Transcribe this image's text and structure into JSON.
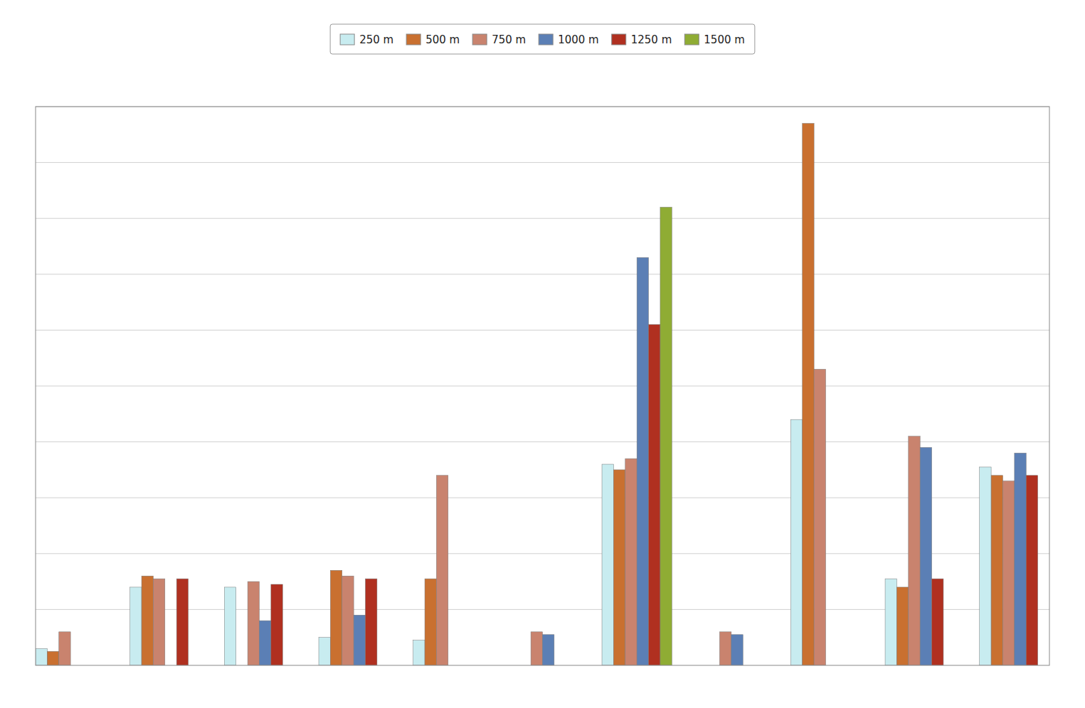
{
  "chart_data": {
    "type": "bar",
    "categories": [
      null,
      null,
      null,
      null,
      null,
      null,
      null,
      null,
      null,
      null,
      null
    ],
    "series": [
      {
        "name": "250 m",
        "color": "#c8ecf0",
        "values": [
          0.3,
          1.4,
          1.4,
          0.5,
          0.45,
          0.0,
          3.6,
          0.0,
          4.4,
          1.55,
          3.55
        ]
      },
      {
        "name": "500 m",
        "color": "#c97030",
        "values": [
          0.25,
          1.6,
          0.0,
          1.7,
          1.55,
          0.0,
          3.5,
          0.0,
          9.7,
          1.4,
          3.4
        ]
      },
      {
        "name": "750 m",
        "color": "#c9836e",
        "values": [
          0.6,
          1.55,
          1.5,
          1.6,
          3.4,
          0.6,
          3.7,
          0.6,
          5.3,
          4.1,
          3.3
        ]
      },
      {
        "name": "1000 m",
        "color": "#5b7fb5",
        "values": [
          0.0,
          0.0,
          0.8,
          0.9,
          0.0,
          0.55,
          7.3,
          0.55,
          0.0,
          3.9,
          3.8
        ]
      },
      {
        "name": "1250 m",
        "color": "#b03020",
        "values": [
          0.0,
          1.55,
          1.45,
          1.55,
          0.0,
          0.0,
          6.1,
          0.0,
          0.0,
          1.55,
          3.4
        ]
      },
      {
        "name": "1500 m",
        "color": "#8fac34",
        "values": [
          0.0,
          0.0,
          0.0,
          0.0,
          0.0,
          0.0,
          8.2,
          0.0,
          0.0,
          0.0,
          0.0
        ]
      }
    ],
    "ylim": [
      0,
      10
    ],
    "yticks": [
      1,
      2,
      3,
      4,
      5,
      6,
      7,
      8,
      9,
      10
    ],
    "grid": true,
    "legend": "top",
    "tick_labels": false
  }
}
